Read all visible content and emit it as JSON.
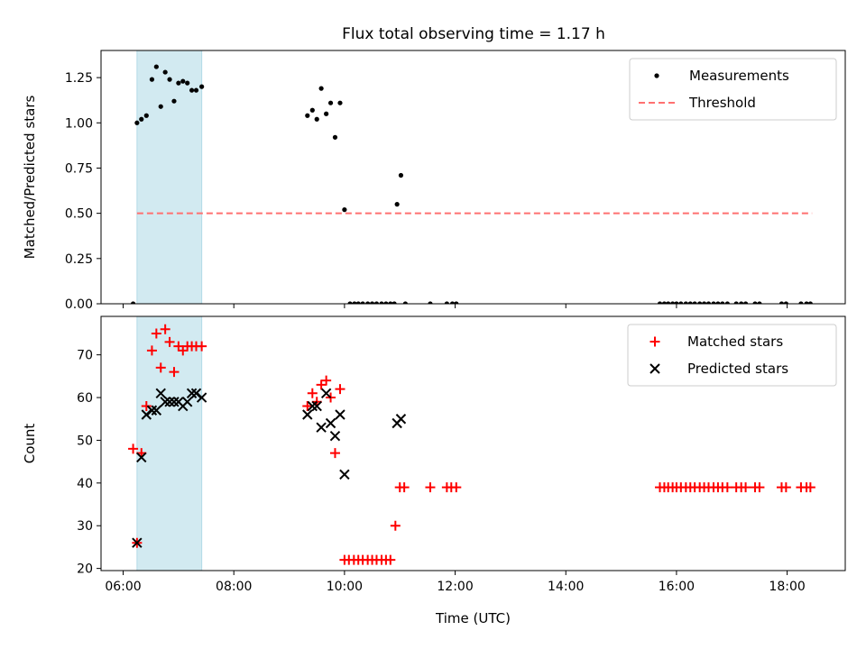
{
  "title": "Flux total observing time = 1.17 h",
  "chart_data": [
    {
      "type": "scatter",
      "panel": "top",
      "title": "Flux total observing time = 1.17 h",
      "ylabel": "Matched/Predicted stars",
      "xlabel": "",
      "x_unit": "hours UTC",
      "xlim": [
        5.6,
        19.05
      ],
      "ylim": [
        0,
        1.4
      ],
      "yticks": [
        "0.00",
        "0.25",
        "0.50",
        "0.75",
        "1.00",
        "1.25"
      ],
      "ytick_values": [
        0,
        0.25,
        0.5,
        0.75,
        1.0,
        1.25
      ],
      "highlight_band": {
        "x_start": 6.25,
        "x_end": 7.42,
        "color": "#add8e6"
      },
      "legend": {
        "position": "top-right",
        "entries": [
          "Measurements",
          "Threshold"
        ]
      },
      "series": [
        {
          "name": "Measurements",
          "marker": "dot",
          "color": "#000000",
          "points": [
            [
              6.18,
              0.0
            ],
            [
              6.25,
              1.0
            ],
            [
              6.33,
              1.02
            ],
            [
              6.42,
              1.04
            ],
            [
              6.52,
              1.24
            ],
            [
              6.6,
              1.31
            ],
            [
              6.68,
              1.09
            ],
            [
              6.76,
              1.28
            ],
            [
              6.84,
              1.24
            ],
            [
              6.92,
              1.12
            ],
            [
              7.0,
              1.22
            ],
            [
              7.08,
              1.23
            ],
            [
              7.16,
              1.22
            ],
            [
              7.24,
              1.18
            ],
            [
              7.32,
              1.18
            ],
            [
              7.42,
              1.2
            ],
            [
              9.33,
              1.04
            ],
            [
              9.42,
              1.07
            ],
            [
              9.5,
              1.02
            ],
            [
              9.58,
              1.19
            ],
            [
              9.67,
              1.05
            ],
            [
              9.75,
              1.11
            ],
            [
              9.83,
              0.92
            ],
            [
              9.92,
              1.11
            ],
            [
              10.0,
              0.52
            ],
            [
              10.1,
              0.0
            ],
            [
              10.18,
              0.0
            ],
            [
              10.25,
              0.0
            ],
            [
              10.33,
              0.0
            ],
            [
              10.42,
              0.0
            ],
            [
              10.5,
              0.0
            ],
            [
              10.58,
              0.0
            ],
            [
              10.67,
              0.0
            ],
            [
              10.75,
              0.0
            ],
            [
              10.83,
              0.0
            ],
            [
              10.9,
              0.0
            ],
            [
              10.95,
              0.55
            ],
            [
              11.02,
              0.71
            ],
            [
              11.1,
              0.0
            ],
            [
              11.55,
              0.0
            ],
            [
              11.85,
              0.0
            ],
            [
              11.95,
              0.0
            ],
            [
              12.02,
              0.0
            ],
            [
              15.7,
              0.0
            ],
            [
              15.78,
              0.0
            ],
            [
              15.85,
              0.0
            ],
            [
              15.93,
              0.0
            ],
            [
              16.0,
              0.0
            ],
            [
              16.08,
              0.0
            ],
            [
              16.17,
              0.0
            ],
            [
              16.25,
              0.0
            ],
            [
              16.33,
              0.0
            ],
            [
              16.42,
              0.0
            ],
            [
              16.5,
              0.0
            ],
            [
              16.58,
              0.0
            ],
            [
              16.67,
              0.0
            ],
            [
              16.75,
              0.0
            ],
            [
              16.83,
              0.0
            ],
            [
              16.92,
              0.0
            ],
            [
              17.08,
              0.0
            ],
            [
              17.17,
              0.0
            ],
            [
              17.25,
              0.0
            ],
            [
              17.42,
              0.0
            ],
            [
              17.5,
              0.0
            ],
            [
              17.9,
              0.0
            ],
            [
              17.98,
              0.0
            ],
            [
              18.25,
              0.0
            ],
            [
              18.35,
              0.0
            ],
            [
              18.42,
              0.0
            ]
          ]
        },
        {
          "name": "Threshold",
          "style": "dashed-line",
          "color": "#ff7070",
          "points": [
            [
              6.25,
              0.5
            ],
            [
              18.45,
              0.5
            ]
          ]
        }
      ]
    },
    {
      "type": "scatter",
      "panel": "bottom",
      "ylabel": "Count",
      "xlabel": "Time (UTC)",
      "x_unit": "hours UTC",
      "xlim": [
        5.6,
        19.05
      ],
      "ylim": [
        19.5,
        79
      ],
      "yticks": [
        "20",
        "30",
        "40",
        "50",
        "60",
        "70"
      ],
      "ytick_values": [
        20,
        30,
        40,
        50,
        60,
        70
      ],
      "xticks": [
        "06:00",
        "08:00",
        "10:00",
        "12:00",
        "14:00",
        "16:00",
        "18:00"
      ],
      "xtick_values": [
        6,
        8,
        10,
        12,
        14,
        16,
        18
      ],
      "highlight_band": {
        "x_start": 6.25,
        "x_end": 7.42,
        "color": "#add8e6"
      },
      "legend": {
        "position": "top-right",
        "entries": [
          "Matched stars",
          "Predicted stars"
        ]
      },
      "series": [
        {
          "name": "Matched stars",
          "marker": "plus",
          "color": "#ff0000",
          "points": [
            [
              6.18,
              48
            ],
            [
              6.25,
              26
            ],
            [
              6.33,
              47
            ],
            [
              6.42,
              58
            ],
            [
              6.52,
              71
            ],
            [
              6.6,
              75
            ],
            [
              6.68,
              67
            ],
            [
              6.76,
              76
            ],
            [
              6.84,
              73
            ],
            [
              6.92,
              66
            ],
            [
              7.0,
              72
            ],
            [
              7.08,
              71
            ],
            [
              7.16,
              72
            ],
            [
              7.24,
              72
            ],
            [
              7.32,
              72
            ],
            [
              7.42,
              72
            ],
            [
              9.33,
              58
            ],
            [
              9.42,
              61
            ],
            [
              9.5,
              59
            ],
            [
              9.58,
              63
            ],
            [
              9.67,
              64
            ],
            [
              9.75,
              60
            ],
            [
              9.83,
              47
            ],
            [
              9.92,
              62
            ],
            [
              10.0,
              22
            ],
            [
              10.08,
              22
            ],
            [
              10.17,
              22
            ],
            [
              10.25,
              22
            ],
            [
              10.33,
              22
            ],
            [
              10.42,
              22
            ],
            [
              10.5,
              22
            ],
            [
              10.58,
              22
            ],
            [
              10.67,
              22
            ],
            [
              10.75,
              22
            ],
            [
              10.83,
              22
            ],
            [
              10.92,
              30
            ],
            [
              11.0,
              39
            ],
            [
              11.08,
              39
            ],
            [
              11.55,
              39
            ],
            [
              11.85,
              39
            ],
            [
              11.93,
              39
            ],
            [
              12.02,
              39
            ],
            [
              15.7,
              39
            ],
            [
              15.78,
              39
            ],
            [
              15.85,
              39
            ],
            [
              15.93,
              39
            ],
            [
              16.0,
              39
            ],
            [
              16.08,
              39
            ],
            [
              16.17,
              39
            ],
            [
              16.25,
              39
            ],
            [
              16.33,
              39
            ],
            [
              16.42,
              39
            ],
            [
              16.5,
              39
            ],
            [
              16.58,
              39
            ],
            [
              16.67,
              39
            ],
            [
              16.75,
              39
            ],
            [
              16.83,
              39
            ],
            [
              16.92,
              39
            ],
            [
              17.08,
              39
            ],
            [
              17.17,
              39
            ],
            [
              17.25,
              39
            ],
            [
              17.42,
              39
            ],
            [
              17.5,
              39
            ],
            [
              17.9,
              39
            ],
            [
              17.98,
              39
            ],
            [
              18.25,
              39
            ],
            [
              18.35,
              39
            ],
            [
              18.42,
              39
            ]
          ]
        },
        {
          "name": "Predicted stars",
          "marker": "x",
          "color": "#000000",
          "points": [
            [
              6.25,
              26
            ],
            [
              6.33,
              46
            ],
            [
              6.42,
              56
            ],
            [
              6.52,
              57
            ],
            [
              6.6,
              57
            ],
            [
              6.68,
              61
            ],
            [
              6.76,
              59
            ],
            [
              6.84,
              59
            ],
            [
              6.92,
              59
            ],
            [
              7.0,
              59
            ],
            [
              7.08,
              58
            ],
            [
              7.16,
              59
            ],
            [
              7.24,
              61
            ],
            [
              7.32,
              61
            ],
            [
              7.42,
              60
            ],
            [
              9.33,
              56
            ],
            [
              9.42,
              58
            ],
            [
              9.5,
              58
            ],
            [
              9.58,
              53
            ],
            [
              9.67,
              61
            ],
            [
              9.75,
              54
            ],
            [
              9.83,
              51
            ],
            [
              9.92,
              56
            ],
            [
              10.0,
              42
            ],
            [
              10.95,
              54
            ],
            [
              11.02,
              55
            ]
          ]
        }
      ]
    }
  ]
}
